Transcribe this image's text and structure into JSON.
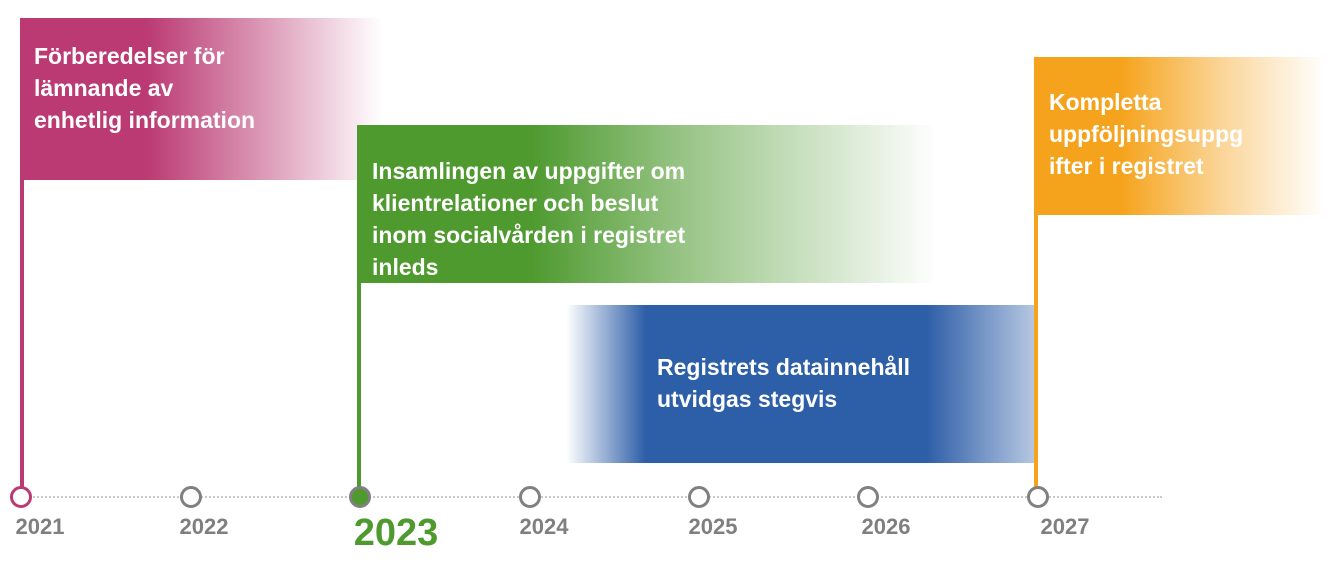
{
  "colors": {
    "pink": "#bb3a73",
    "green": "#4e9a2f",
    "blue": "#2d5ea8",
    "orange": "#f5a31c",
    "gray": "#808080"
  },
  "milestones": [
    {
      "lines": [
        "Förberedelser för",
        "lämnande av",
        "enhetlig information"
      ],
      "year": "2021"
    },
    {
      "lines": [
        "Insamlingen av uppgifter om",
        "klientrelationer och beslut",
        "inom socialvården i registret",
        "inleds"
      ],
      "year": "2023"
    },
    {
      "lines": [
        "Registrets datainnehåll",
        "utvidgas stegvis"
      ]
    },
    {
      "lines": [
        "Kompletta",
        "uppföljningsuppg",
        "ifter i registret"
      ],
      "year": "2027"
    }
  ],
  "timeline": {
    "years": [
      "2021",
      "2022",
      "2023",
      "2024",
      "2025",
      "2026",
      "2027"
    ],
    "highlighted": "2023"
  }
}
